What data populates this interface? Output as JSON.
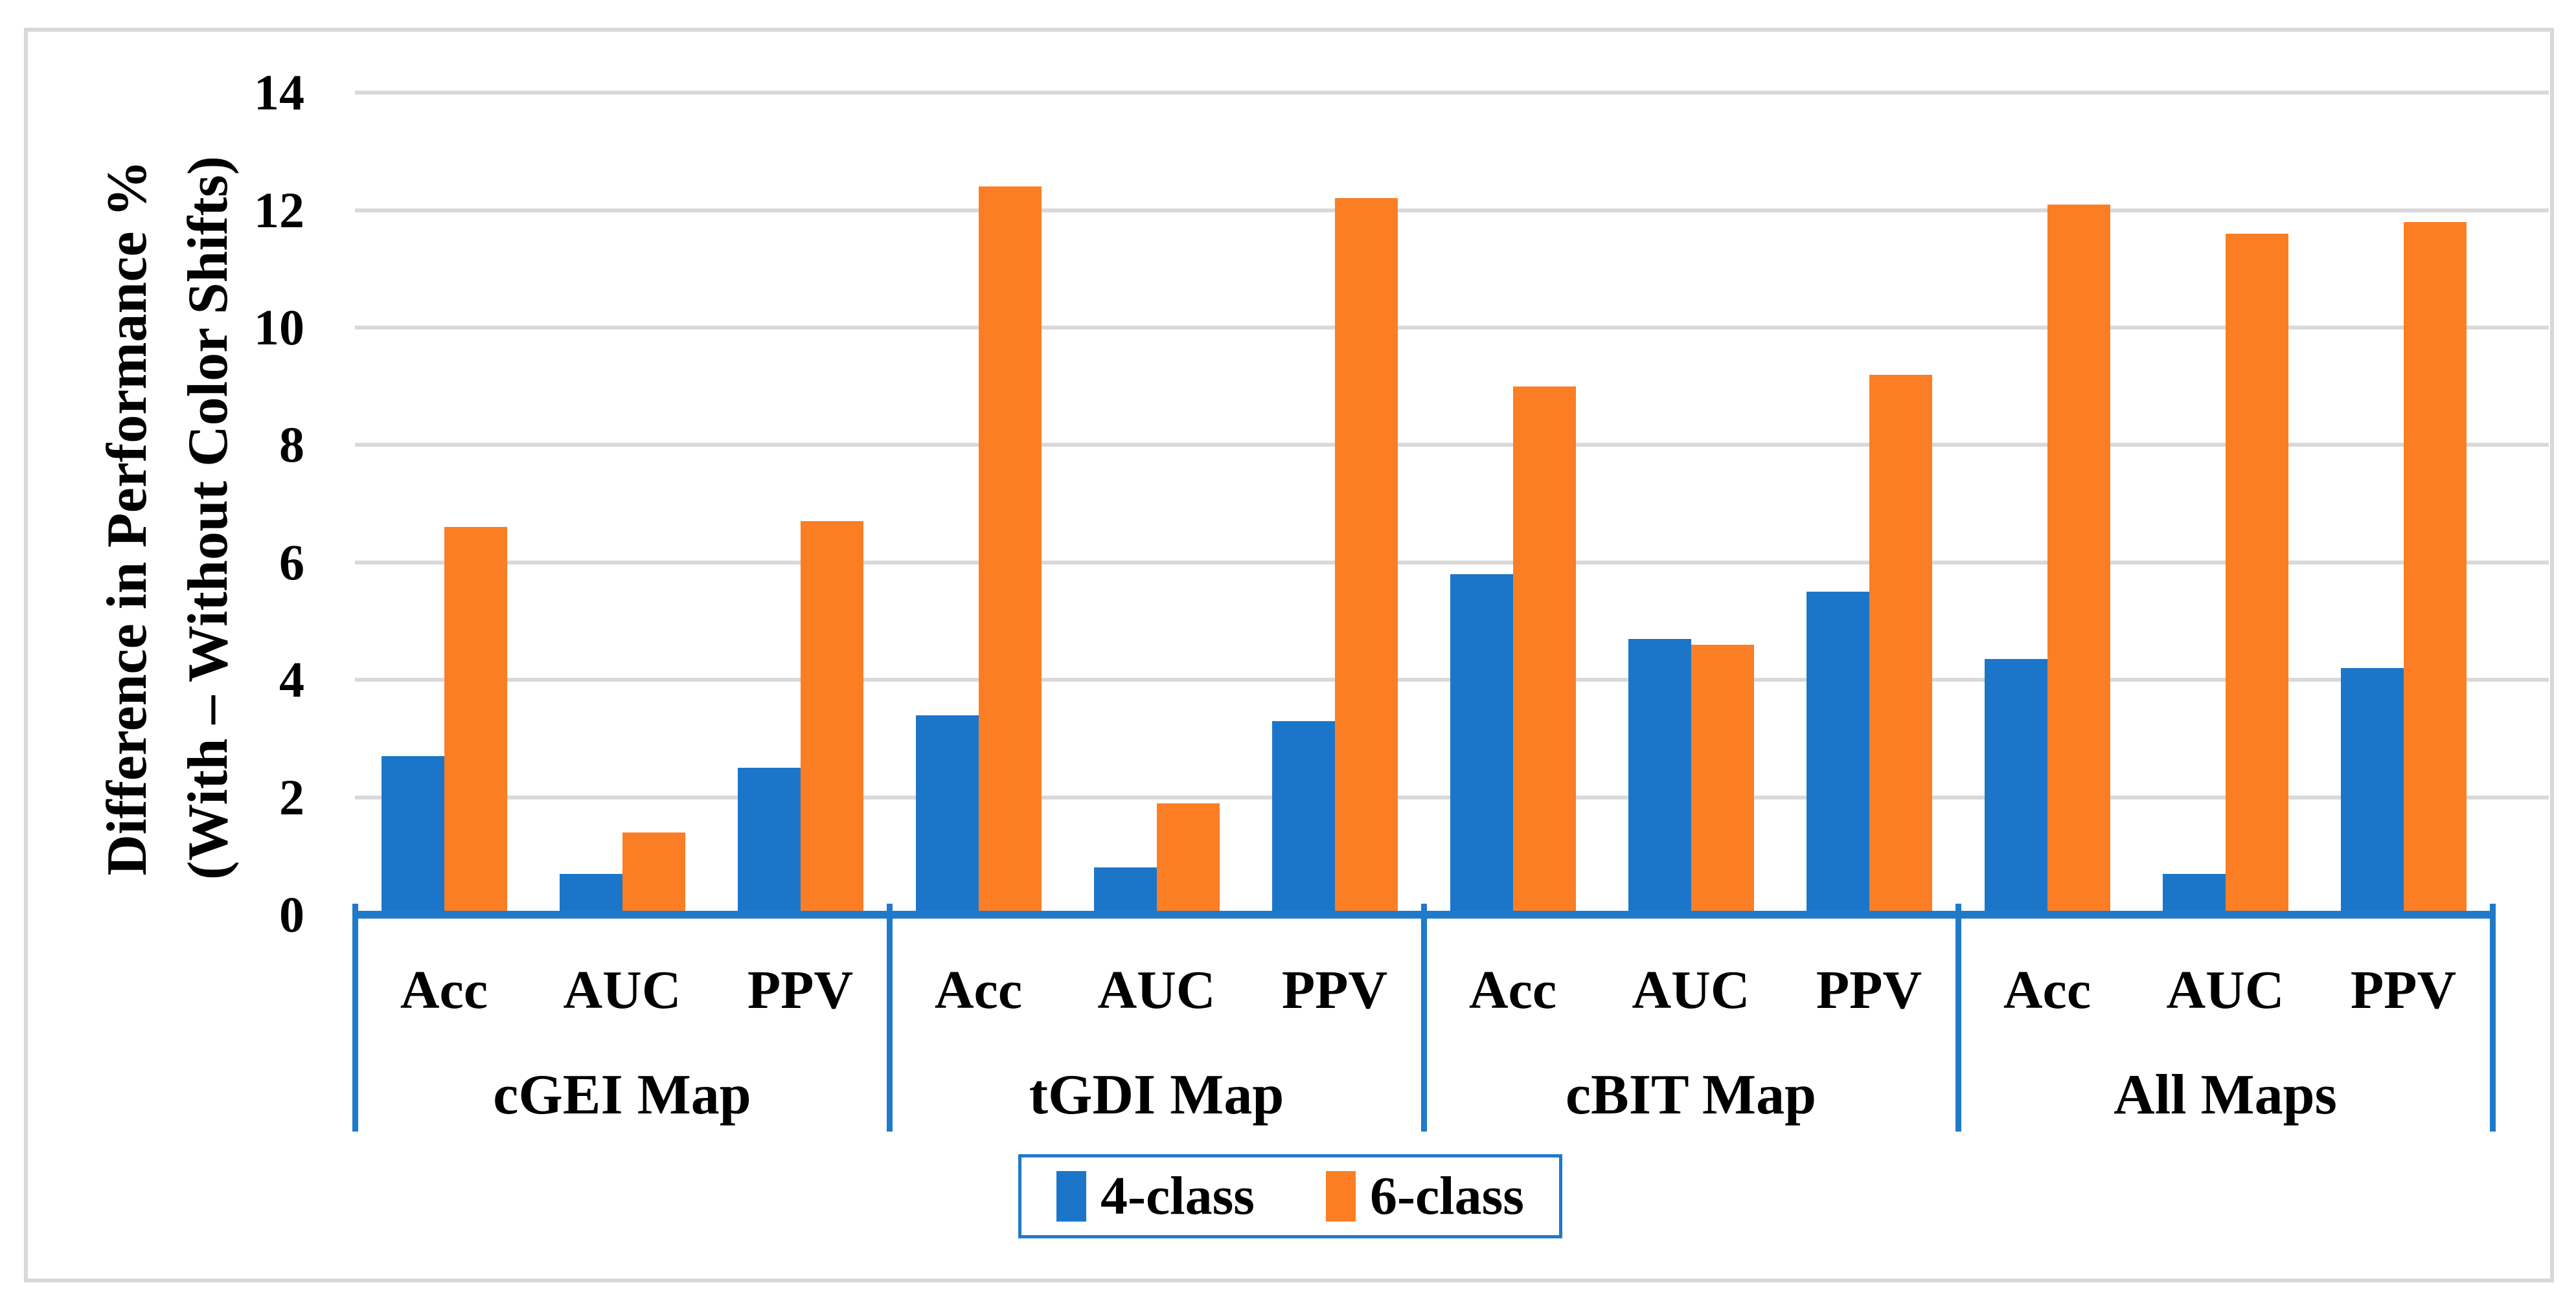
{
  "chart_data": {
    "type": "bar",
    "title": "",
    "y_axis": {
      "title_line1": "Difference in Performance %",
      "title_line2": "(With – Without Color Shifts)",
      "min": 0,
      "max": 14,
      "step": 2,
      "tick_labels": [
        "0",
        "2",
        "4",
        "6",
        "8",
        "10",
        "12",
        "14"
      ]
    },
    "x_axis": {
      "groups": [
        "cGEI Map",
        "tGDI Map",
        "cBIT Map",
        "All Maps"
      ],
      "metrics_per_group": [
        "Acc",
        "AUC",
        "PPV"
      ]
    },
    "series": [
      {
        "name": "4-class",
        "color": "#1B76C9",
        "values": [
          2.7,
          0.7,
          2.5,
          3.4,
          0.8,
          3.3,
          5.8,
          4.7,
          5.5,
          4.35,
          0.7,
          4.2
        ]
      },
      {
        "name": "6-class",
        "color": "#FB7E25",
        "values": [
          6.6,
          1.4,
          6.7,
          12.4,
          1.9,
          12.2,
          9.0,
          4.6,
          9.2,
          12.1,
          11.6,
          11.8
        ]
      }
    ],
    "legend_position": "bottom",
    "grid": true
  },
  "colors": {
    "gridline": "#D9D9D9",
    "axis_frame": "#1F7AC9",
    "figure_border": "#D8D8D8",
    "text": "#000000",
    "background": "#FFFFFF"
  }
}
